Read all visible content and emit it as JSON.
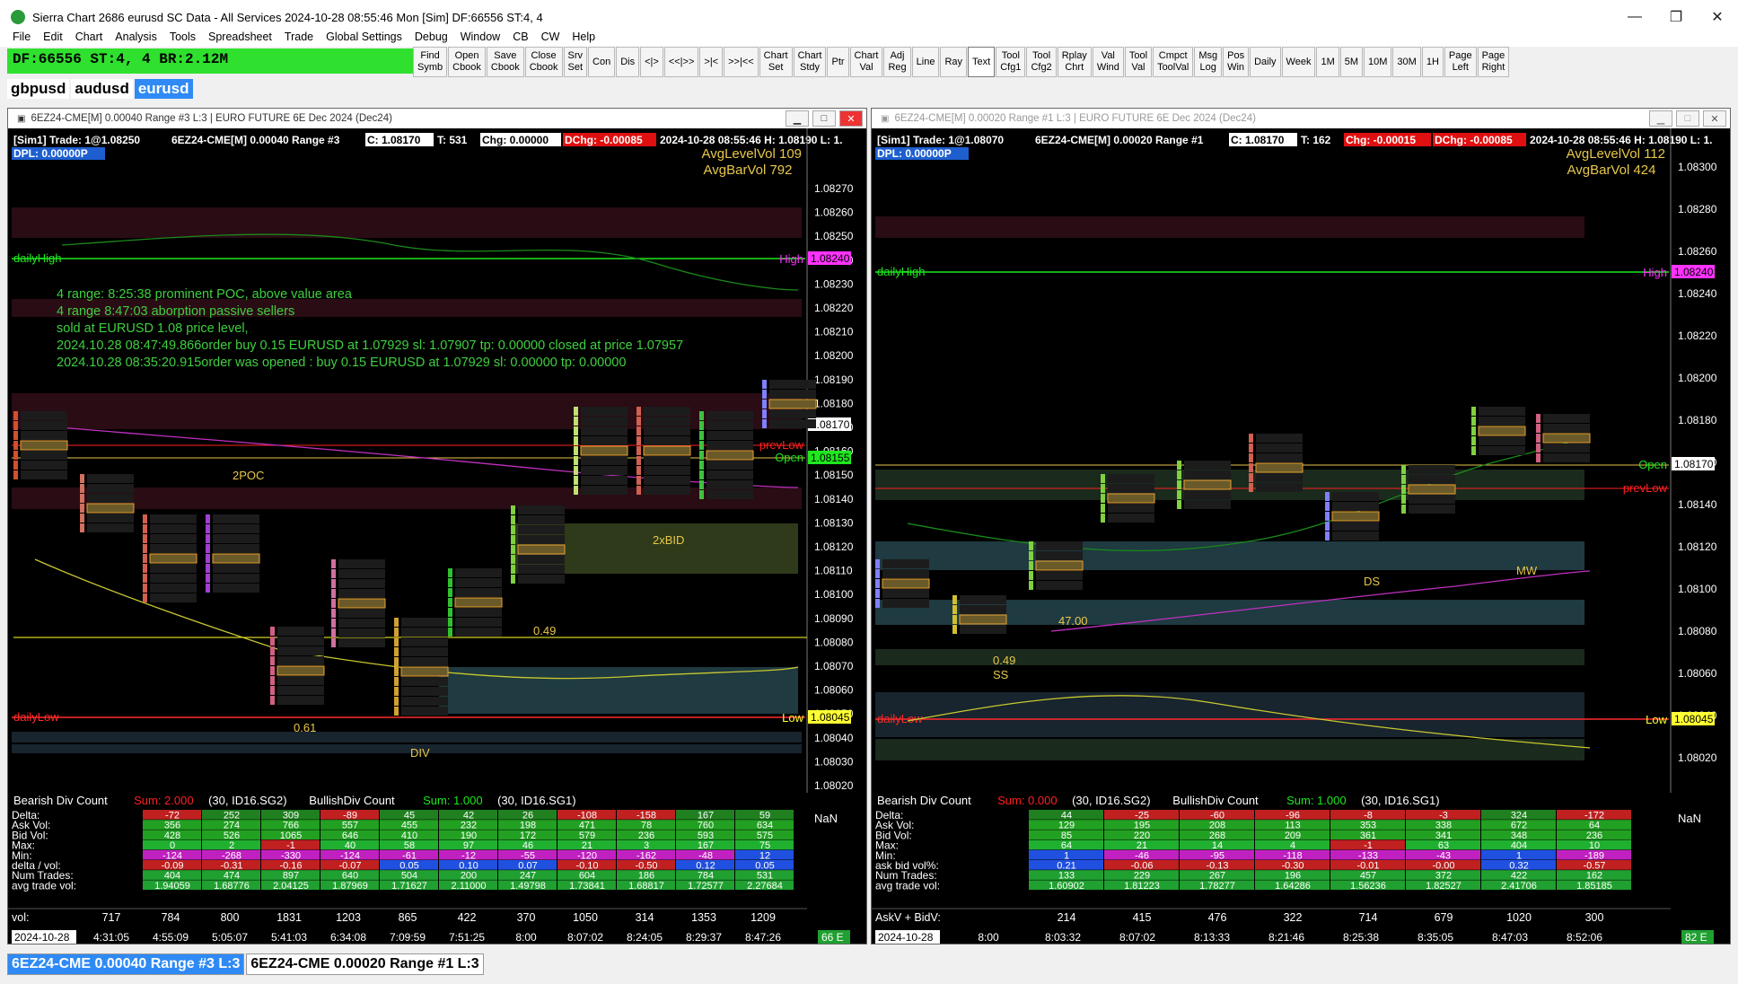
{
  "window": {
    "title": "Sierra Chart 2686 eurusd SC Data - All Services 2024-10-28  08:55:46 Mon [Sim]  DF:66556  ST:4, 4"
  },
  "menu": [
    "File",
    "Edit",
    "Chart",
    "Analysis",
    "Tools",
    "Spreadsheet",
    "Trade",
    "Global Settings",
    "Debug",
    "Window",
    "CB",
    "CW",
    "Help"
  ],
  "status": {
    "text": "DF:66556  ST:4, 4  BR:2.12M"
  },
  "toolbar": [
    {
      "label": "Find\nSymb"
    },
    {
      "label": "Open\nCbook"
    },
    {
      "label": "Save\nCbook"
    },
    {
      "label": "Close\nCbook"
    },
    {
      "label": "Srv\nSet"
    },
    {
      "label": "Con"
    },
    {
      "label": "Dis"
    },
    {
      "label": "<|>"
    },
    {
      "label": "<<|>>"
    },
    {
      "label": ">|<"
    },
    {
      "label": ">>|<<"
    },
    {
      "label": "Chart\nSet"
    },
    {
      "label": "Chart\nStdy"
    },
    {
      "label": "Ptr"
    },
    {
      "label": "Chart\nVal"
    },
    {
      "label": "Adj\nReg"
    },
    {
      "label": "Line"
    },
    {
      "label": "Ray"
    },
    {
      "label": "Text"
    },
    {
      "label": "Tool\nCfg1"
    },
    {
      "label": "Tool\nCfg2"
    },
    {
      "label": "Rplay\nChrt"
    },
    {
      "label": "Val\nWind"
    },
    {
      "label": "Tool\nVal"
    },
    {
      "label": "Cmpct\nToolVal"
    },
    {
      "label": "Msg\nLog"
    },
    {
      "label": "Pos\nWin"
    },
    {
      "label": "Daily"
    },
    {
      "label": "Week"
    },
    {
      "label": "1M"
    },
    {
      "label": "5M"
    },
    {
      "label": "10M"
    },
    {
      "label": "30M"
    },
    {
      "label": "1H"
    },
    {
      "label": "Page\nLeft"
    },
    {
      "label": "Page\nRight"
    }
  ],
  "symbol_tabs": [
    {
      "label": "gbpusd"
    },
    {
      "label": "audusd"
    },
    {
      "label": "eurusd"
    }
  ],
  "left_chart": {
    "title": "6EZ24-CME[M]  0.00040 Range #3 L:3  | EURO FUTURE 6E Dec 2024 (Dec24)",
    "header_segments": [
      "[Sim1]  Trade: 1@1.08250",
      "6EZ24-CME[M]  0.00040 Range #3",
      "C: 1.08170",
      "T: 531",
      "Chg: 0.00000",
      "DChg: -0.00085",
      "2024-10-28 08:55:46  H: 1.08190  L: 1."
    ],
    "dpl": "DPL: 0.00000P",
    "avg_level_vol": "AvgLevelVol 109",
    "avg_bar_vol": "AvgBarVol 792",
    "notes": [
      "4 range: 8:25:38 prominent POC, above value area",
      "4 range 8:47:03 aborption passive sellers",
      "sold at EURUSD 1.08 price level,",
      "2024.10.28 08:47:49.866order buy 0.15 EURUSD at 1.07929 sl: 1.07907 tp: 0.00000 closed at price 1.07957",
      "2024.10.28 08:35:20.915order was opened : buy 0.15 EURUSD at 1.07929 sl: 0.00000 tp: 0.00000"
    ],
    "price_axis": [
      "1.08270",
      "1.08260",
      "1.08250",
      "1.08240",
      "1.08230",
      "1.08220",
      "1.08210",
      "1.08200",
      "1.08190",
      "1.08180",
      "1.08170",
      "1.08160",
      "1.08150",
      "1.08140",
      "1.08130",
      "1.08120",
      "1.08110",
      "1.08100",
      "1.08090",
      "1.08080",
      "1.08070",
      "1.08060",
      "1.08050",
      "1.08040",
      "1.08030",
      "1.08020"
    ],
    "daily_high_label": "dailyHigh",
    "high_label": "High",
    "high_price": "1.08240",
    "daily_low_label": "dailyLow",
    "low_label": "Low",
    "low_price": "1.08045",
    "prevlow_label": "prevLow",
    "open_label": "Open",
    "open_price": "1.08155",
    "last_price": "1.08170",
    "annotations": [
      "2POC",
      "2xBID",
      "0.49",
      "0.61",
      "DIV"
    ],
    "study_line": {
      "a": "Bearish Div Count",
      "b": "Sum: 2.000",
      "c": "(30, ID16.SG2)",
      "d": "BullishDiv Count",
      "e": "Sum: 1.000",
      "f": "(30, ID16.SG1)"
    },
    "nan": "NaN",
    "table_rows": [
      {
        "label": "Delta:",
        "values": [
          "-72",
          "252",
          "309",
          "-89",
          "45",
          "42",
          "26",
          "-108",
          "-158",
          "167",
          "59"
        ]
      },
      {
        "label": "Ask Vol:",
        "values": [
          "356",
          "274",
          "766",
          "557",
          "455",
          "232",
          "198",
          "471",
          "78",
          "760",
          "634"
        ]
      },
      {
        "label": "Bid Vol:",
        "values": [
          "428",
          "526",
          "1065",
          "646",
          "410",
          "190",
          "172",
          "579",
          "236",
          "593",
          "575"
        ]
      },
      {
        "label": "Max:",
        "values": [
          "0",
          "2",
          "-1",
          "40",
          "58",
          "97",
          "46",
          "21",
          "3",
          "167",
          "75"
        ]
      },
      {
        "label": "Min:",
        "values": [
          "-124",
          "-268",
          "-330",
          "-124",
          "-61",
          "-12",
          "-55",
          "-120",
          "-162",
          "-48",
          "12"
        ]
      },
      {
        "label": "delta / vol:",
        "values": [
          "-0.09",
          "-0.31",
          "-0.16",
          "-0.07",
          "0.05",
          "0.10",
          "0.07",
          "-0.10",
          "-0.50",
          "0.12",
          "0.05"
        ]
      },
      {
        "label": "Num Trades:",
        "values": [
          "404",
          "474",
          "897",
          "640",
          "504",
          "200",
          "247",
          "604",
          "186",
          "784",
          "531"
        ]
      },
      {
        "label": "avg trade vol:",
        "values": [
          "1.94059",
          "1.68776",
          "2.04125",
          "1.87969",
          "1.71627",
          "2.11000",
          "1.49798",
          "1.73841",
          "1.68817",
          "1.72577",
          "2.27684"
        ]
      }
    ],
    "vol_label": "vol:",
    "vol_values": [
      "717",
      "784",
      "800",
      "1831",
      "1203",
      "865",
      "422",
      "370",
      "1050",
      "314",
      "1353",
      "1209"
    ],
    "time_date": "2024-10-28",
    "time_labels": [
      "4:31:05",
      "4:55:09",
      "5:05:07",
      "5:41:03",
      "6:34:08",
      "7:09:59",
      "7:51:25",
      "8:00",
      "8:07:02",
      "8:24:05",
      "8:29:37",
      "8:47:26"
    ],
    "bar_count": "66 E"
  },
  "right_chart": {
    "title": "6EZ24-CME[M]  0.00020 Range #1 L:3  | EURO FUTURE 6E Dec 2024 (Dec24)",
    "header_segments": [
      "[Sim1]  Trade: 1@1.08070",
      "6EZ24-CME[M]  0.00020 Range #1",
      "C: 1.08170",
      "T: 162",
      "Chg: -0.00015",
      "DChg: -0.00085",
      "2024-10-28 08:55:46  H: 1.08190  L: 1."
    ],
    "dpl": "DPL: 0.00000P",
    "avg_level_vol": "AvgLevelVol 112",
    "avg_bar_vol": "AvgBarVol 424",
    "price_axis": [
      "1.08300",
      "1.08280",
      "1.08260",
      "1.08240",
      "1.08220",
      "1.08200",
      "1.08180",
      "1.08160",
      "1.08140",
      "1.08120",
      "1.08100",
      "1.08080",
      "1.08060",
      "1.08040",
      "1.08020"
    ],
    "daily_high_label": "dailyHigh",
    "high_label": "High",
    "high_price": "1.08240",
    "daily_low_label": "dailyLow",
    "low_label": "Low",
    "low_price": "1.08045",
    "prevlow_label": "prevLow",
    "open_label": "Open",
    "last_price": "1.08170",
    "annotations": [
      "47.00",
      "0.49",
      "SS",
      "DS",
      "MW"
    ],
    "study_line": {
      "a": "Bearish Div Count",
      "b": "Sum: 0.000",
      "c": "(30, ID16.SG2)",
      "d": "BullishDiv Count",
      "e": "Sum: 1.000",
      "f": "(30, ID16.SG1)"
    },
    "nan": "NaN",
    "table_rows": [
      {
        "label": "Delta:",
        "values": [
          "44",
          "-25",
          "-60",
          "-96",
          "-8",
          "-3",
          "324",
          "-172"
        ]
      },
      {
        "label": "Ask Vol:",
        "values": [
          "129",
          "195",
          "208",
          "113",
          "353",
          "338",
          "672",
          "64"
        ]
      },
      {
        "label": "Bid Vol:",
        "values": [
          "85",
          "220",
          "268",
          "209",
          "361",
          "341",
          "348",
          "236"
        ]
      },
      {
        "label": "Max:",
        "values": [
          "64",
          "21",
          "14",
          "4",
          "-1",
          "63",
          "404",
          "10"
        ]
      },
      {
        "label": "Min:",
        "values": [
          "1",
          "-46",
          "-95",
          "-118",
          "-133",
          "-43",
          "1",
          "-189"
        ]
      },
      {
        "label": "ask bid vol%:",
        "values": [
          "0.21",
          "-0.06",
          "-0.13",
          "-0.30",
          "-0.01",
          "-0.00",
          "0.32",
          "-0.57"
        ]
      },
      {
        "label": "Num Trades:",
        "values": [
          "133",
          "229",
          "267",
          "196",
          "457",
          "372",
          "422",
          "162"
        ]
      },
      {
        "label": "avg trade vol:",
        "values": [
          "1.60902",
          "1.81223",
          "1.78277",
          "1.64286",
          "1.56236",
          "1.82527",
          "2.41706",
          "1.85185"
        ]
      }
    ],
    "vol_label": "AskV + BidV:",
    "vol_values": [
      "214",
      "415",
      "476",
      "322",
      "714",
      "679",
      "1020",
      "300"
    ],
    "time_date": "2024-10-28",
    "time_labels": [
      "8:00",
      "8:03:32",
      "8:07:02",
      "8:13:33",
      "8:21:46",
      "8:25:38",
      "8:35:05",
      "8:47:03",
      "8:52:06"
    ],
    "bar_count": "82 E"
  },
  "bottom_tabs": [
    {
      "label": "6EZ24-CME  0.00040 Range #3  L:3"
    },
    {
      "label": "6EZ24-CME  0.00020 Range #1  L:3"
    }
  ],
  "colors": {
    "status_green": "#2fe02f",
    "active_tab": "#2f8af5",
    "high_line": "#1ee81e",
    "low_line": "#ff2a2a",
    "note_text": "#3fcf3f",
    "avg_text": "#e8c84a"
  }
}
